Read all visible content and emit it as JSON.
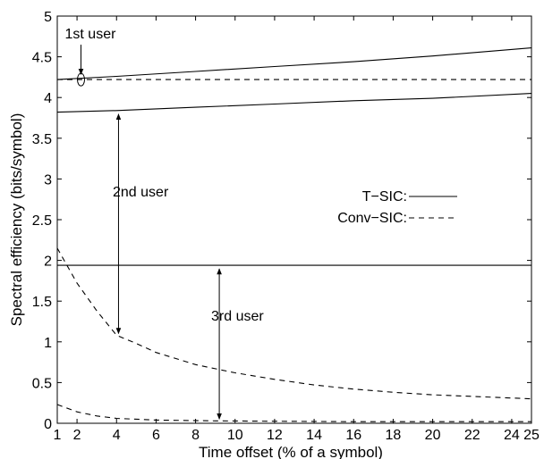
{
  "chart_data": {
    "type": "line",
    "title": "",
    "xlabel": "Time offset (% of a symbol)",
    "ylabel": "Spectral efficiency (bits/symbol)",
    "xlim": [
      1,
      25
    ],
    "ylim": [
      0,
      5
    ],
    "xticks": [
      "1",
      "2",
      "4",
      "6",
      "8",
      "10",
      "12",
      "14",
      "16",
      "18",
      "20",
      "22",
      "24",
      "25"
    ],
    "yticks": [
      "0",
      "0.5",
      "1",
      "1.5",
      "2",
      "2.5",
      "3",
      "3.5",
      "4",
      "4.5",
      "5"
    ],
    "grid": false,
    "legend_position": "right-middle",
    "legend": [
      {
        "label": "T−SIC:",
        "style": "solid"
      },
      {
        "label": "Conv−SIC:",
        "style": "dashed"
      }
    ],
    "series": [
      {
        "method": "T-SIC",
        "user": "1st",
        "style": "solid",
        "x": [
          1,
          4,
          8,
          12,
          16,
          20,
          25
        ],
        "values": [
          4.22,
          4.26,
          4.32,
          4.38,
          4.44,
          4.51,
          4.61
        ]
      },
      {
        "method": "T-SIC",
        "user": "2nd",
        "style": "solid",
        "x": [
          1,
          4,
          8,
          12,
          16,
          20,
          25
        ],
        "values": [
          3.82,
          3.84,
          3.88,
          3.92,
          3.96,
          3.99,
          4.05
        ]
      },
      {
        "method": "T-SIC",
        "user": "3rd",
        "style": "solid",
        "x": [
          1,
          25
        ],
        "values": [
          1.94,
          1.94
        ]
      },
      {
        "method": "Conv-SIC",
        "user": "1st",
        "style": "dashed",
        "x": [
          1,
          25
        ],
        "values": [
          4.22,
          4.22
        ]
      },
      {
        "method": "Conv-SIC",
        "user": "2nd",
        "style": "dashed",
        "x": [
          1,
          2,
          3,
          4,
          5,
          6,
          8,
          10,
          12,
          14,
          16,
          18,
          20,
          22,
          24,
          25
        ],
        "values": [
          2.15,
          1.72,
          1.38,
          1.08,
          0.98,
          0.87,
          0.72,
          0.62,
          0.54,
          0.47,
          0.42,
          0.38,
          0.35,
          0.33,
          0.31,
          0.3
        ]
      },
      {
        "method": "Conv-SIC",
        "user": "3rd",
        "style": "dashed",
        "x": [
          1,
          2,
          3,
          4,
          6,
          9,
          12,
          16,
          20,
          25
        ],
        "values": [
          0.23,
          0.14,
          0.09,
          0.06,
          0.04,
          0.03,
          0.025,
          0.02,
          0.02,
          0.02
        ]
      }
    ],
    "annotations": [
      {
        "text": "1st user",
        "arrow_x": 2.2,
        "arrow_from_y": 4.62,
        "arrow_to_y": 4.24,
        "ellipse": true
      },
      {
        "text": "2nd user",
        "arrow_x": 4.1,
        "arrow_from_y": 3.84,
        "arrow_to_y": 1.08
      },
      {
        "text": "3rd user",
        "arrow_x": 9.2,
        "arrow_from_y": 1.93,
        "arrow_to_y": 0.03
      }
    ]
  }
}
